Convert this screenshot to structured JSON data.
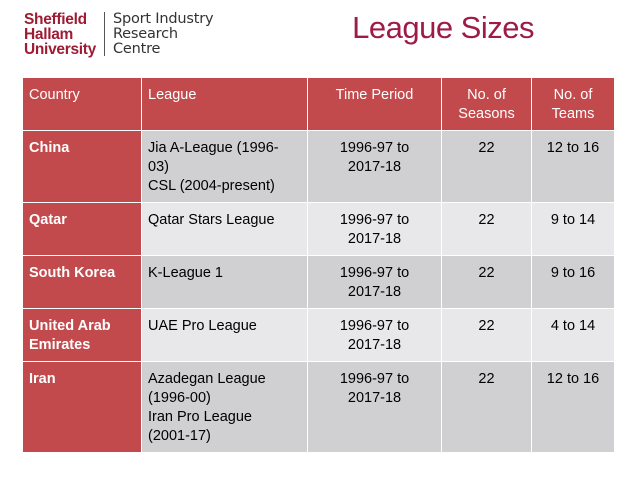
{
  "logo": {
    "left_lines": [
      "Sheffield",
      "Hallam",
      "University"
    ],
    "right_lines": [
      "Sport Industry",
      "Research",
      "Centre"
    ]
  },
  "title": "League Sizes",
  "table": {
    "headers": [
      [
        "Country"
      ],
      [
        "League"
      ],
      [
        "Time Period"
      ],
      [
        "No. of",
        "Seasons"
      ],
      [
        "No. of",
        "Teams"
      ]
    ],
    "rows": [
      {
        "country": [
          "China"
        ],
        "league": [
          "Jia A-League (1996-",
          "03)",
          "CSL (2004-present)"
        ],
        "period": [
          "1996-97 to",
          "2017-18"
        ],
        "seasons": "22",
        "teams": "12 to 16"
      },
      {
        "country": [
          "Qatar"
        ],
        "league": [
          "Qatar Stars League"
        ],
        "period": [
          "1996-97 to",
          "2017-18"
        ],
        "seasons": "22",
        "teams": "9 to 14"
      },
      {
        "country": [
          "South Korea"
        ],
        "league": [
          "K-League 1"
        ],
        "period": [
          "1996-97 to",
          "2017-18"
        ],
        "seasons": "22",
        "teams": "9 to 16"
      },
      {
        "country": [
          "United Arab",
          "Emirates"
        ],
        "league": [
          "UAE Pro League"
        ],
        "period": [
          "1996-97 to",
          "2017-18"
        ],
        "seasons": "22",
        "teams": "4 to 14"
      },
      {
        "country": [
          "Iran"
        ],
        "league": [
          "Azadegan League",
          "(1996-00)",
          "Iran Pro League",
          "(2001-17)"
        ],
        "period": [
          "1996-97 to",
          "2017-18"
        ],
        "seasons": "22",
        "teams": "12 to 16"
      }
    ]
  },
  "colors": {
    "header_fill": "#c24a4c",
    "row_odd_fill": "#d0d0d2",
    "row_even_fill": "#e8e8ea",
    "title_color": "#9e1b46",
    "logo_color": "#9e1b34"
  }
}
